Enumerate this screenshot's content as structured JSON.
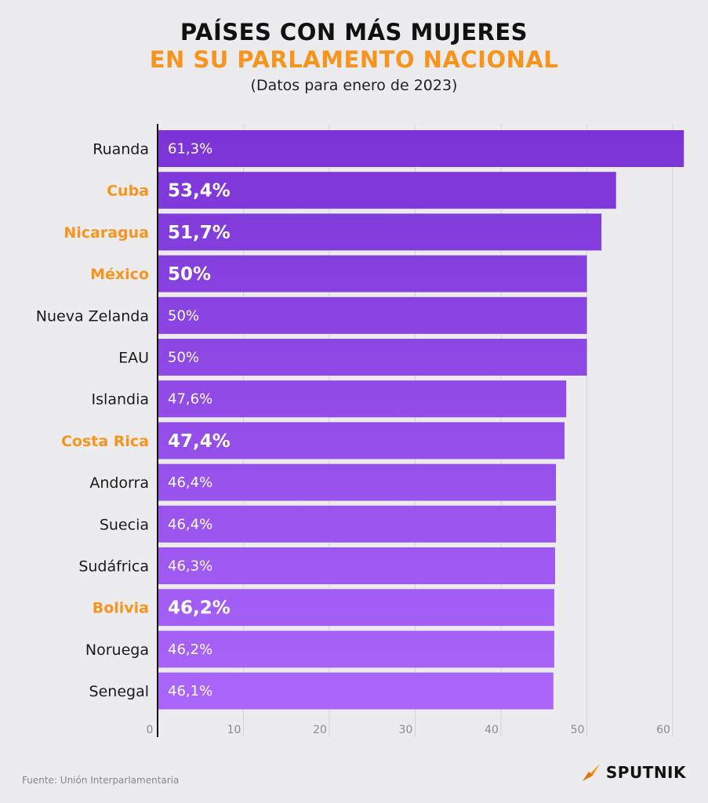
{
  "title_line1": "PAÍSES CON MÁS MUJERES",
  "title_line2": "EN SU PARLAMENTO NACIONAL",
  "subtitle": "(Datos para enero de 2023)",
  "source": "Fuente: Unión Interparlamentaria",
  "brand": "SPUTNIK",
  "colors": {
    "highlight_label": "#f7941d",
    "bar_top": "#7a34d6",
    "bar_bottom": "#ab66fb",
    "grid": "#d4d4d8",
    "axis": "#111111"
  },
  "chart_data": {
    "type": "bar",
    "orientation": "horizontal",
    "categories": [
      "Ruanda",
      "Cuba",
      "Nicaragua",
      "México",
      "Nueva Zelanda",
      "EAU",
      "Islandia",
      "Costa Rica",
      "Andorra",
      "Suecia",
      "Sudáfrica",
      "Bolivia",
      "Noruega",
      "Senegal"
    ],
    "values": [
      61.3,
      53.4,
      51.7,
      50,
      50,
      50,
      47.6,
      47.4,
      46.4,
      46.4,
      46.3,
      46.2,
      46.2,
      46.1
    ],
    "value_labels": [
      "61,3%",
      "53,4%",
      "51,7%",
      "50%",
      "50%",
      "50%",
      "47,6%",
      "47,4%",
      "46,4%",
      "46,4%",
      "46,3%",
      "46,2%",
      "46,2%",
      "46,1%"
    ],
    "highlighted": [
      "Cuba",
      "Nicaragua",
      "México",
      "Costa Rica",
      "Bolivia"
    ],
    "xlim": [
      0,
      60
    ],
    "xticks": [
      0,
      10,
      20,
      30,
      40,
      50,
      60
    ],
    "grid": true
  }
}
